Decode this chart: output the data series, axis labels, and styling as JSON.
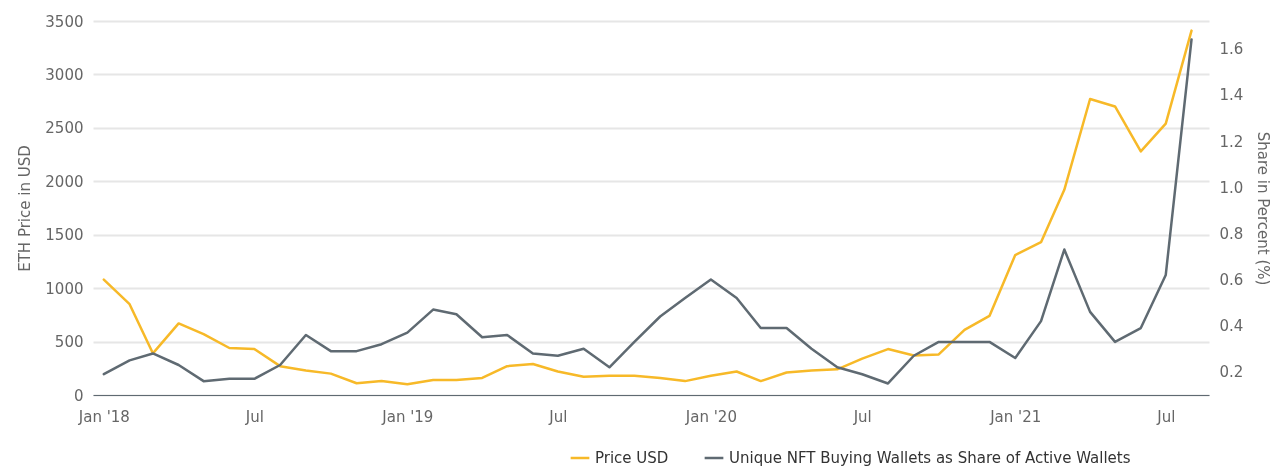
{
  "chart_data": {
    "type": "line",
    "xlabel": null,
    "ylabel": "ETH Price in USD",
    "y2label": "Share in Percent (%)",
    "x": [
      "2018-01",
      "2018-02",
      "2018-03",
      "2018-04",
      "2018-05",
      "2018-06",
      "2018-07",
      "2018-08",
      "2018-09",
      "2018-10",
      "2018-11",
      "2018-12",
      "2019-01",
      "2019-02",
      "2019-03",
      "2019-04",
      "2019-05",
      "2019-06",
      "2019-07",
      "2019-08",
      "2019-09",
      "2019-10",
      "2019-11",
      "2019-12",
      "2020-01",
      "2020-02",
      "2020-03",
      "2020-04",
      "2020-05",
      "2020-06",
      "2020-07",
      "2020-08",
      "2020-09",
      "2020-10",
      "2020-11",
      "2020-12",
      "2021-01",
      "2021-02",
      "2021-03",
      "2021-04",
      "2021-05",
      "2021-06",
      "2021-07",
      "2021-08"
    ],
    "series": [
      {
        "name": "Price USD",
        "color": "#f7b928",
        "values": [
          1080,
          850,
          390,
          670,
          570,
          440,
          430,
          270,
          230,
          200,
          110,
          130,
          100,
          140,
          140,
          160,
          270,
          290,
          220,
          170,
          180,
          180,
          160,
          130,
          180,
          220,
          130,
          210,
          230,
          240,
          340,
          430,
          370,
          380,
          610,
          740,
          1310,
          1430,
          1920,
          2770,
          2700,
          2280,
          2540,
          3410
        ]
      },
      {
        "name": "Unique NFT Buying Wallets as Share of Active Wallets",
        "color": "#5f6a72",
        "axis": "y2",
        "values": [
          0.19,
          0.25,
          0.28,
          0.23,
          0.16,
          0.17,
          0.17,
          0.23,
          0.36,
          0.29,
          0.29,
          0.32,
          0.37,
          0.47,
          0.45,
          0.35,
          0.36,
          0.28,
          0.27,
          0.3,
          0.22,
          0.33,
          0.44,
          0.52,
          0.6,
          0.52,
          0.39,
          0.39,
          0.3,
          0.22,
          0.19,
          0.15,
          0.27,
          0.33,
          0.33,
          0.33,
          0.26,
          0.42,
          0.73,
          0.46,
          0.33,
          0.39,
          0.62,
          1.64
        ]
      }
    ],
    "xlim": [
      "2017-12-19",
      "2021-08-22"
    ],
    "xticks": [
      {
        "value": "2018-01",
        "label": "Jan '18"
      },
      {
        "value": "2018-07",
        "label": "Jul"
      },
      {
        "value": "2019-01",
        "label": "Jan '19"
      },
      {
        "value": "2019-07",
        "label": "Jul"
      },
      {
        "value": "2020-01",
        "label": "Jan '20"
      },
      {
        "value": "2020-07",
        "label": "Jul"
      },
      {
        "value": "2021-01",
        "label": "Jan '21"
      },
      {
        "value": "2021-07",
        "label": "Jul"
      }
    ],
    "ylim": [
      0,
      3500
    ],
    "yticks": [
      0,
      500,
      1000,
      1500,
      2000,
      2500,
      3000,
      3500
    ],
    "y2lim": [
      0.1,
      1.72
    ],
    "y2ticks": [
      {
        "value": 0.2,
        "label": "0.2"
      },
      {
        "value": 0.4,
        "label": "0.4"
      },
      {
        "value": 0.6,
        "label": "0.6"
      },
      {
        "value": 0.8,
        "label": "0.8"
      },
      {
        "value": 1.0,
        "label": "1.0"
      },
      {
        "value": 1.2,
        "label": "1.2"
      },
      {
        "value": 1.4,
        "label": "1.4"
      },
      {
        "value": 1.6,
        "label": "1.6"
      }
    ],
    "grid": "y",
    "legend": "bottom right",
    "marker": "none",
    "line_style": "solid"
  }
}
